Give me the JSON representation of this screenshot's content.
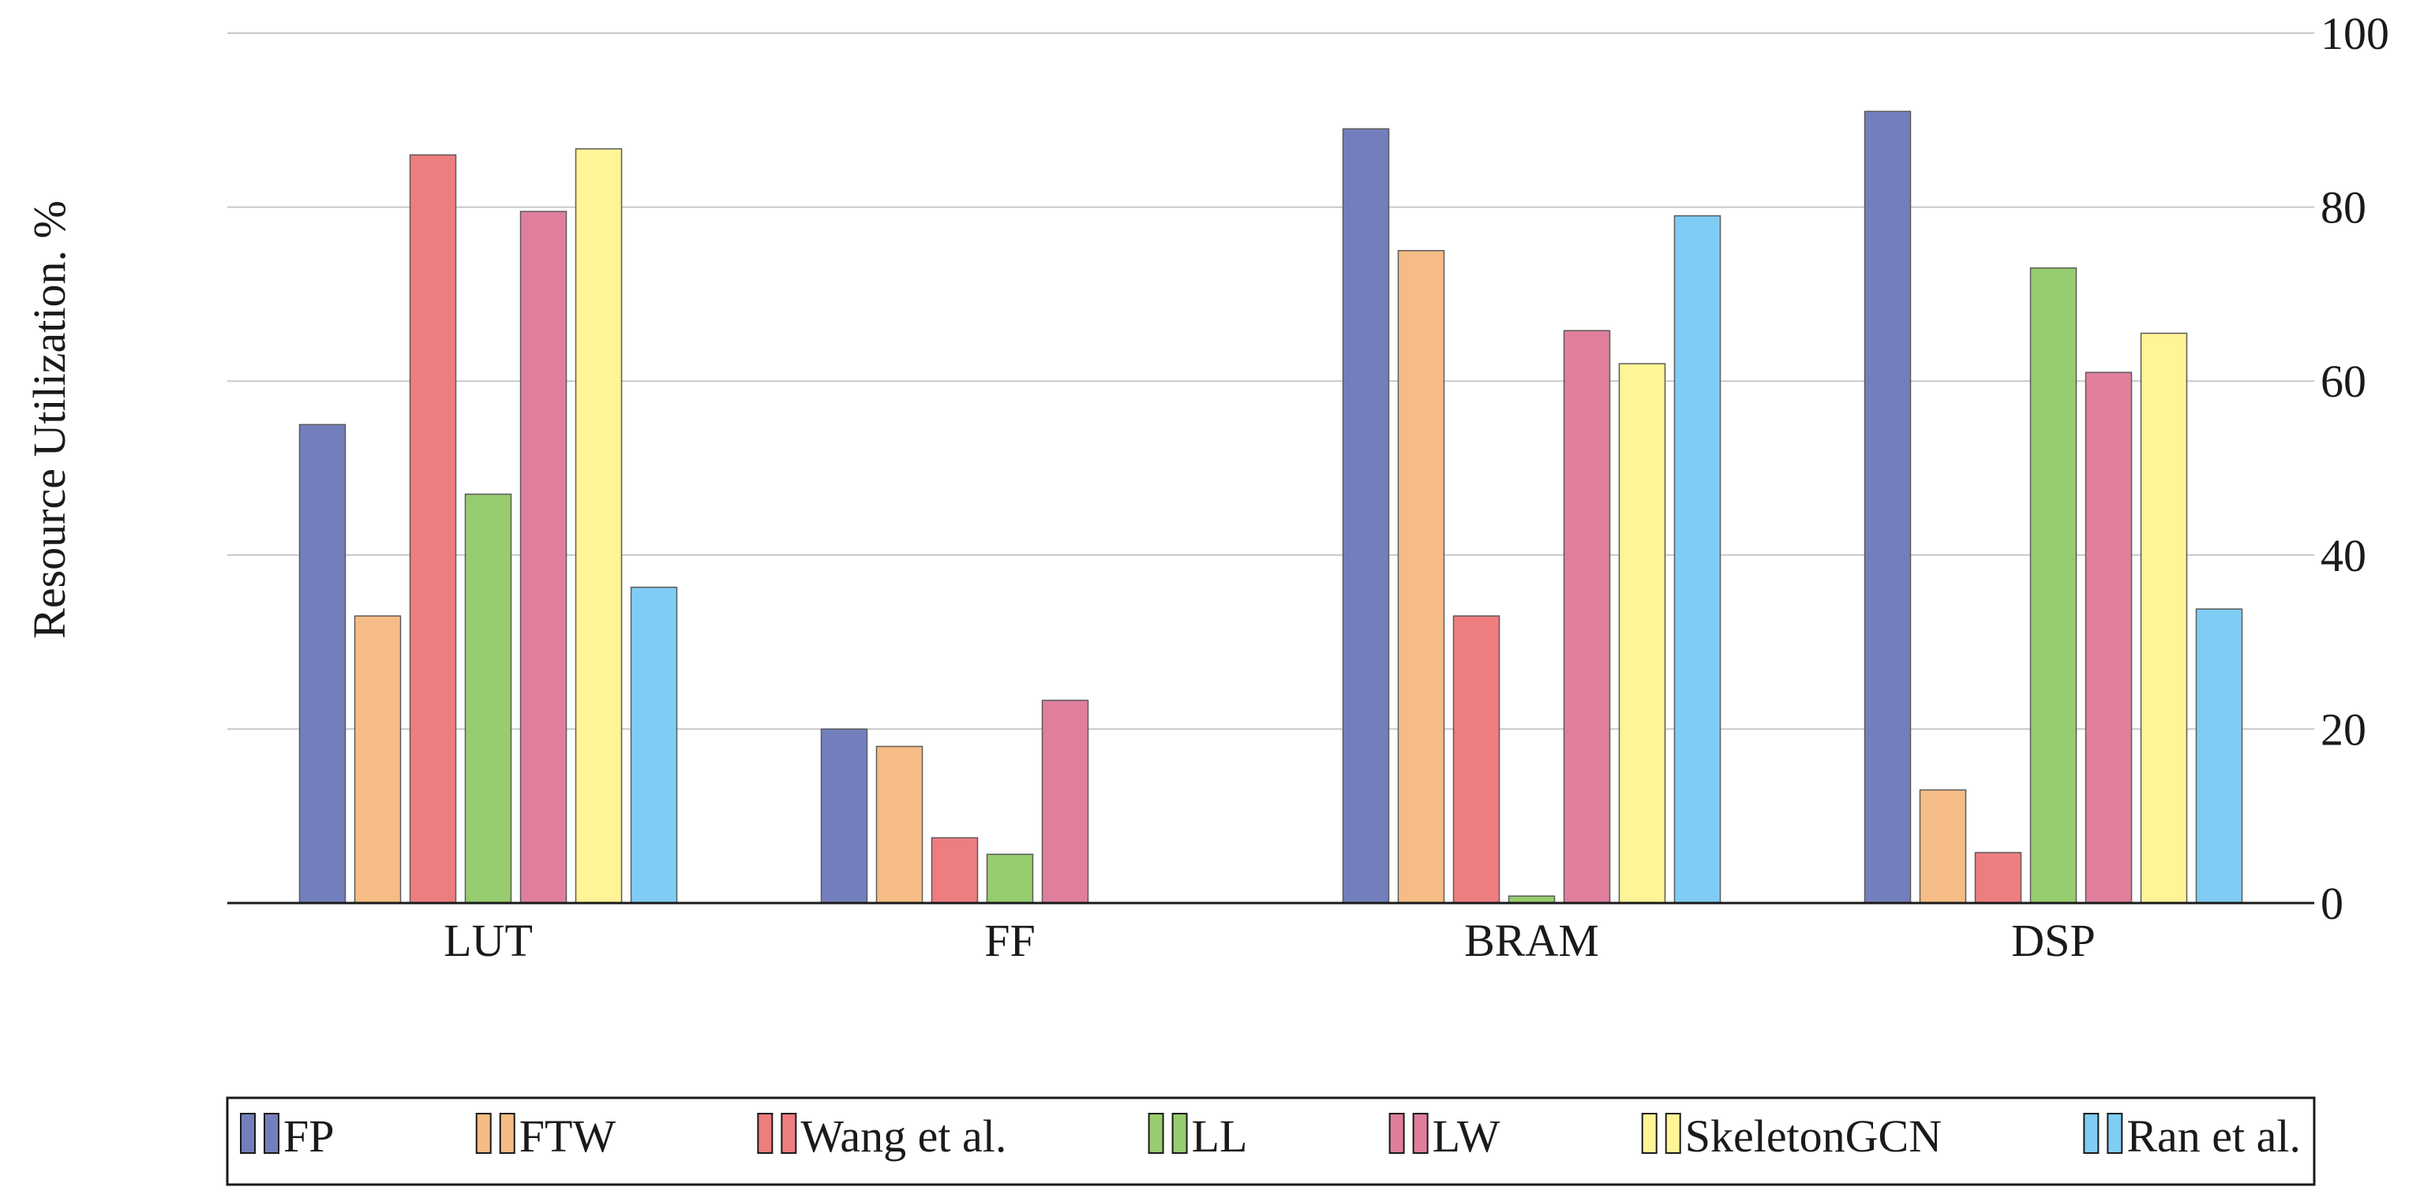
{
  "chart_data": {
    "type": "bar",
    "categories": [
      "LUT",
      "FF",
      "BRAM",
      "DSP"
    ],
    "ylabel": "Resource Utilization. %",
    "xlabel": "",
    "ylim": [
      0,
      100
    ],
    "yticks": [
      0,
      20,
      40,
      60,
      80,
      100
    ],
    "y_axis_side": "right",
    "grid": true,
    "legend_position": "bottom",
    "series": [
      {
        "name": "FP",
        "color": "#737fbd",
        "values": [
          55,
          20,
          89,
          91
        ]
      },
      {
        "name": "FTW",
        "color": "#f6bc85",
        "values": [
          33,
          18,
          75,
          13
        ]
      },
      {
        "name": "Wang et al.",
        "color": "#ee7d7f",
        "values": [
          86,
          7.5,
          33,
          5.8
        ]
      },
      {
        "name": "LL",
        "color": "#97cc6f",
        "values": [
          47,
          5.6,
          0.8,
          73
        ]
      },
      {
        "name": "LW",
        "color": "#df7f9c",
        "values": [
          79.5,
          23.3,
          65.8,
          61
        ]
      },
      {
        "name": "SkeletonGCN",
        "color": "#fff597",
        "values": [
          86.7,
          0,
          62,
          65.5
        ]
      },
      {
        "name": "Ran et al.",
        "color": "#7fcdf4",
        "values": [
          36.3,
          0,
          79,
          33.8
        ]
      }
    ]
  }
}
